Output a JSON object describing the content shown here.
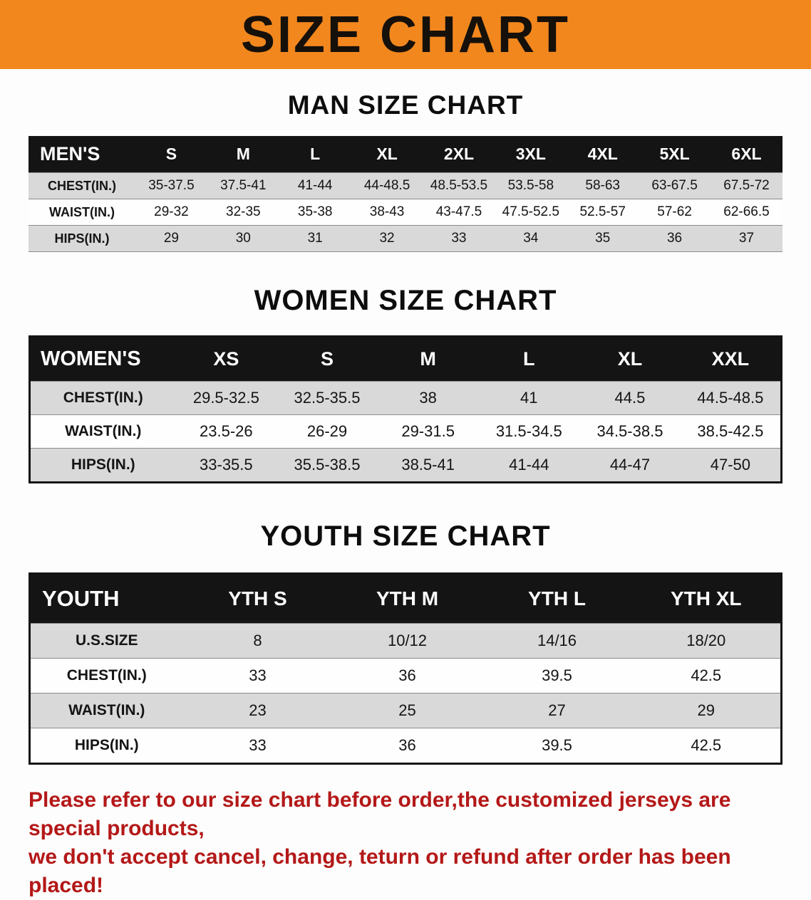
{
  "banner": {
    "title": "SIZE CHART",
    "bg_color": "#F2871E"
  },
  "sections": [
    {
      "heading": "MAN SIZE CHART",
      "table": {
        "header": [
          "MEN'S",
          "S",
          "M",
          "L",
          "XL",
          "2XL",
          "3XL",
          "4XL",
          "5XL",
          "6XL"
        ],
        "rows": [
          [
            "CHEST(IN.)",
            "35-37.5",
            "37.5-41",
            "41-44",
            "44-48.5",
            "48.5-53.5",
            "53.5-58",
            "58-63",
            "63-67.5",
            "67.5-72"
          ],
          [
            "WAIST(IN.)",
            "29-32",
            "32-35",
            "35-38",
            "38-43",
            "43-47.5",
            "47.5-52.5",
            "52.5-57",
            "57-62",
            "62-66.5"
          ],
          [
            "HIPS(IN.)",
            "29",
            "30",
            "31",
            "32",
            "33",
            "34",
            "35",
            "36",
            "37"
          ]
        ]
      }
    },
    {
      "heading": "WOMEN SIZE CHART",
      "table": {
        "header": [
          "WOMEN'S",
          "XS",
          "S",
          "M",
          "L",
          "XL",
          "XXL"
        ],
        "rows": [
          [
            "CHEST(IN.)",
            "29.5-32.5",
            "32.5-35.5",
            "38",
            "41",
            "44.5",
            "44.5-48.5"
          ],
          [
            "WAIST(IN.)",
            "23.5-26",
            "26-29",
            "29-31.5",
            "31.5-34.5",
            "34.5-38.5",
            "38.5-42.5"
          ],
          [
            "HIPS(IN.)",
            "33-35.5",
            "35.5-38.5",
            "38.5-41",
            "41-44",
            "44-47",
            "47-50"
          ]
        ]
      }
    },
    {
      "heading": "YOUTH SIZE CHART",
      "table": {
        "header": [
          "YOUTH",
          "YTH S",
          "YTH M",
          "YTH L",
          "YTH XL"
        ],
        "rows": [
          [
            "U.S.SIZE",
            "8",
            "10/12",
            "14/16",
            "18/20"
          ],
          [
            "CHEST(IN.)",
            "33",
            "36",
            "39.5",
            "42.5"
          ],
          [
            "WAIST(IN.)",
            "23",
            "25",
            "27",
            "29"
          ],
          [
            "HIPS(IN.)",
            "33",
            "36",
            "39.5",
            "42.5"
          ]
        ]
      }
    }
  ],
  "disclaimer": {
    "color": "#B41818",
    "line1": "Please refer to our size chart before order,the customized jerseys are special products,",
    "line2": "we don't accept cancel, change, teturn or refund after order has been placed!"
  }
}
